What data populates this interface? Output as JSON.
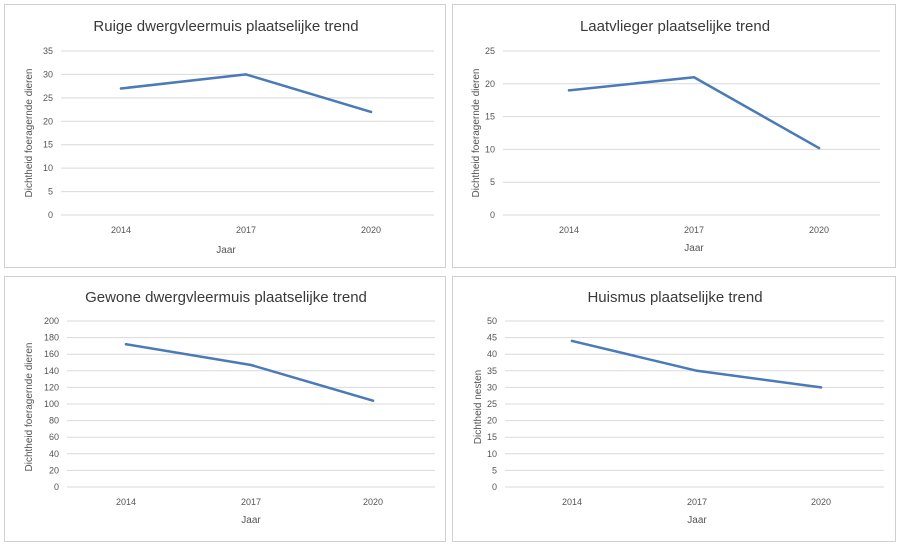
{
  "chart_data": [
    {
      "type": "line",
      "title": "Ruige dwergvleermuis plaatselijke trend",
      "xlabel": "Jaar",
      "ylabel": "Dichtheid foeragernde  dieren",
      "categories": [
        "2014",
        "2017",
        "2020"
      ],
      "values": [
        27,
        30,
        22
      ],
      "ylim": [
        0,
        35
      ],
      "yticks": [
        0,
        5,
        10,
        15,
        20,
        25,
        30,
        35
      ],
      "grid": true,
      "color": "#4a7ab8"
    },
    {
      "type": "line",
      "title": "Laatvlieger plaatselijke trend",
      "xlabel": "Jaar",
      "ylabel": "Dichtheid foeragernde  dieren",
      "categories": [
        "2014",
        "2017",
        "2020"
      ],
      "values": [
        19,
        21,
        10.2
      ],
      "ylim": [
        0,
        25
      ],
      "yticks": [
        0,
        5,
        10,
        15,
        20,
        25
      ],
      "grid": true,
      "color": "#4a7ab8"
    },
    {
      "type": "line",
      "title": "Gewone dwergvleermuis plaatselijke trend",
      "xlabel": "Jaar",
      "ylabel": "Dichtheid foeragernde  dieren",
      "categories": [
        "2014",
        "2017",
        "2020"
      ],
      "values": [
        172,
        147,
        104
      ],
      "ylim": [
        0,
        200
      ],
      "yticks": [
        0,
        20,
        40,
        60,
        80,
        100,
        120,
        140,
        160,
        180,
        200
      ],
      "grid": true,
      "color": "#4a7ab8"
    },
    {
      "type": "line",
      "title": "Huismus plaatselijke trend",
      "xlabel": "Jaar",
      "ylabel": "Dichtheid  nesten",
      "categories": [
        "2014",
        "2017",
        "2020"
      ],
      "values": [
        44,
        35,
        30
      ],
      "ylim": [
        0,
        50
      ],
      "yticks": [
        0,
        5,
        10,
        15,
        20,
        25,
        30,
        35,
        40,
        45,
        50
      ],
      "grid": true,
      "color": "#4a7ab8"
    }
  ]
}
